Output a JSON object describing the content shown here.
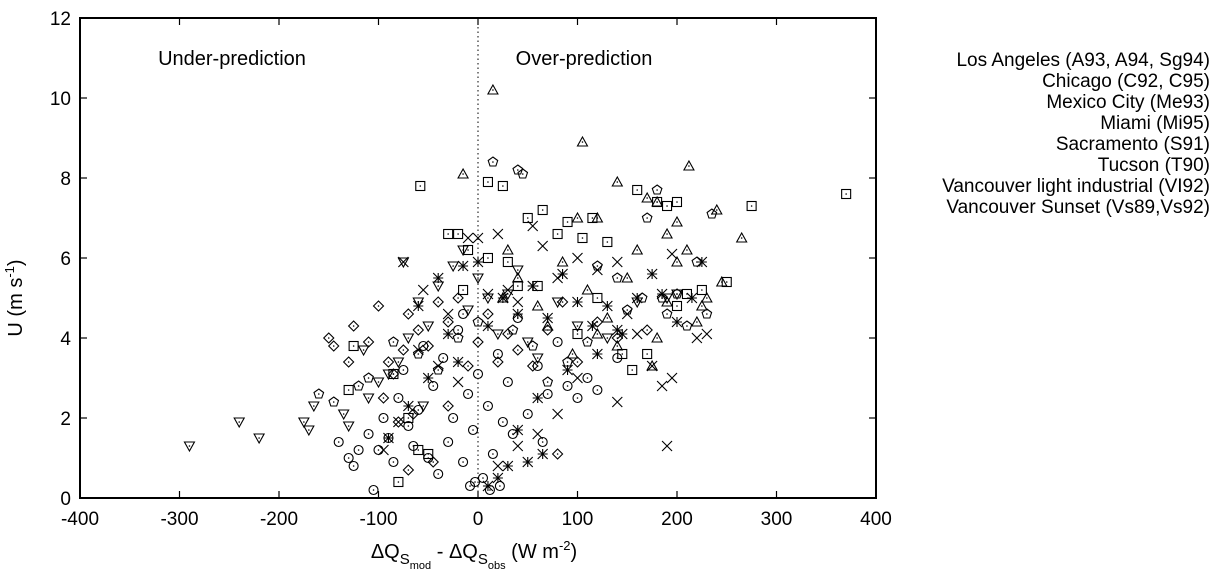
{
  "chart_data": {
    "type": "scatter",
    "xlim": [
      -400,
      400
    ],
    "ylim": [
      0,
      12
    ],
    "xticks": [
      -400,
      -300,
      -200,
      -100,
      0,
      100,
      200,
      300,
      400
    ],
    "yticks": [
      0,
      2,
      4,
      6,
      8,
      10,
      12
    ],
    "xlabel": {
      "delta": "ΔQ",
      "s1": "S",
      "mod": "mod",
      "sep": " -  ",
      "s2": "S",
      "obs": "obs",
      "unit_pre": " (W m",
      "exp": "-2",
      "unit_post": ")"
    },
    "ylabel": {
      "pre": "U (m s",
      "exp": "-1",
      "post": ")"
    },
    "grid": false,
    "zero_line": "dotted vertical at x = 0",
    "annotations": {
      "left": "Under-prediction",
      "right": "Over-prediction"
    },
    "legend_position": "right, outside plot",
    "series": [
      {
        "name": "Los Angeles (A93, A94, Sg94)",
        "marker": "circle",
        "points": [
          [
            -105,
            0.2
          ],
          [
            -100,
            1.2
          ],
          [
            -90,
            1.5
          ],
          [
            -80,
            2.5
          ],
          [
            -75,
            3.2
          ],
          [
            -70,
            1.8
          ],
          [
            -60,
            2.2
          ],
          [
            -55,
            3.8
          ],
          [
            -50,
            1.0
          ],
          [
            -45,
            2.8
          ],
          [
            -40,
            0.6
          ],
          [
            -35,
            3.5
          ],
          [
            -30,
            1.4
          ],
          [
            -25,
            2.0
          ],
          [
            -20,
            4.2
          ],
          [
            -15,
            0.9
          ],
          [
            -10,
            2.6
          ],
          [
            -5,
            1.7
          ],
          [
            0,
            3.1
          ],
          [
            5,
            0.5
          ],
          [
            10,
            2.3
          ],
          [
            15,
            1.1
          ],
          [
            20,
            3.6
          ],
          [
            25,
            1.9
          ],
          [
            30,
            2.9
          ],
          [
            40,
            4.5
          ],
          [
            50,
            2.1
          ],
          [
            60,
            3.3
          ],
          [
            70,
            2.6
          ],
          [
            80,
            3.9
          ],
          [
            90,
            2.8
          ],
          [
            100,
            2.5
          ],
          [
            110,
            3.0
          ],
          [
            120,
            2.7
          ],
          [
            140,
            3.5
          ],
          [
            -120,
            1.2
          ],
          [
            -130,
            1.0
          ],
          [
            -140,
            1.4
          ],
          [
            -110,
            1.6
          ],
          [
            -85,
            0.9
          ],
          [
            -65,
            1.3
          ],
          [
            -95,
            2.0
          ],
          [
            -15,
            4.6
          ],
          [
            -8,
            0.3
          ],
          [
            12,
            0.2
          ],
          [
            22,
            0.3
          ],
          [
            -3,
            0.4
          ],
          [
            35,
            1.6
          ],
          [
            65,
            1.4
          ],
          [
            -125,
            0.8
          ]
        ]
      },
      {
        "name": "Chicago (C92, C95)",
        "marker": "triangle-up",
        "points": [
          [
            15,
            10.2
          ],
          [
            105,
            8.9
          ],
          [
            212,
            8.3
          ],
          [
            -15,
            8.1
          ],
          [
            140,
            7.9
          ],
          [
            170,
            7.5
          ],
          [
            180,
            7.4
          ],
          [
            120,
            7.0
          ],
          [
            240,
            7.2
          ],
          [
            265,
            6.5
          ],
          [
            200,
            6.9
          ],
          [
            210,
            6.2
          ],
          [
            190,
            6.6
          ],
          [
            230,
            5.0
          ],
          [
            100,
            7.0
          ],
          [
            160,
            6.2
          ],
          [
            150,
            5.5
          ],
          [
            220,
            4.4
          ],
          [
            180,
            4.0
          ],
          [
            175,
            3.3
          ],
          [
            140,
            3.8
          ],
          [
            130,
            4.5
          ],
          [
            110,
            5.2
          ],
          [
            85,
            5.9
          ],
          [
            60,
            4.8
          ],
          [
            40,
            5.5
          ],
          [
            30,
            6.2
          ],
          [
            25,
            5.0
          ],
          [
            200,
            5.9
          ],
          [
            245,
            5.4
          ],
          [
            190,
            4.9
          ],
          [
            120,
            4.1
          ],
          [
            95,
            3.6
          ],
          [
            70,
            4.3
          ],
          [
            225,
            4.8
          ]
        ]
      },
      {
        "name": "Mexico City (Me93)",
        "marker": "triangle-down",
        "points": [
          [
            -290,
            1.3
          ],
          [
            -240,
            1.9
          ],
          [
            -220,
            1.5
          ],
          [
            -175,
            1.9
          ],
          [
            -170,
            1.7
          ],
          [
            -135,
            2.1
          ],
          [
            -130,
            1.8
          ],
          [
            -110,
            2.5
          ],
          [
            -100,
            2.9
          ],
          [
            -80,
            3.4
          ],
          [
            -75,
            5.9
          ],
          [
            -70,
            4.0
          ],
          [
            -60,
            4.9
          ],
          [
            -50,
            4.3
          ],
          [
            -40,
            5.3
          ],
          [
            -25,
            5.8
          ],
          [
            -15,
            6.2
          ],
          [
            -10,
            4.7
          ],
          [
            0,
            5.5
          ],
          [
            10,
            5.0
          ],
          [
            20,
            4.1
          ],
          [
            30,
            5.1
          ],
          [
            40,
            5.7
          ],
          [
            50,
            3.9
          ],
          [
            60,
            3.5
          ],
          [
            80,
            4.9
          ],
          [
            100,
            4.3
          ],
          [
            130,
            4.0
          ],
          [
            160,
            4.9
          ],
          [
            190,
            5.0
          ],
          [
            200,
            5.1
          ],
          [
            -55,
            2.3
          ],
          [
            -90,
            3.1
          ],
          [
            -165,
            2.3
          ],
          [
            -115,
            3.7
          ]
        ]
      },
      {
        "name": "Miami (Mi95)",
        "marker": "diamond",
        "points": [
          [
            -150,
            4.0
          ],
          [
            -145,
            3.8
          ],
          [
            -130,
            3.4
          ],
          [
            -125,
            4.3
          ],
          [
            -110,
            3.9
          ],
          [
            -100,
            4.8
          ],
          [
            -90,
            3.4
          ],
          [
            -85,
            3.1
          ],
          [
            -75,
            3.7
          ],
          [
            -70,
            4.6
          ],
          [
            -60,
            4.2
          ],
          [
            -50,
            3.8
          ],
          [
            -40,
            4.9
          ],
          [
            -30,
            4.4
          ],
          [
            -20,
            5.0
          ],
          [
            -10,
            3.3
          ],
          [
            0,
            3.9
          ],
          [
            10,
            4.6
          ],
          [
            20,
            3.4
          ],
          [
            30,
            4.1
          ],
          [
            40,
            3.7
          ],
          [
            55,
            3.3
          ],
          [
            70,
            4.2
          ],
          [
            85,
            4.9
          ],
          [
            100,
            3.4
          ],
          [
            120,
            4.4
          ],
          [
            140,
            4.0
          ],
          [
            170,
            4.2
          ],
          [
            -95,
            2.5
          ],
          [
            -65,
            2.1
          ],
          [
            -45,
            0.9
          ],
          [
            -80,
            1.9
          ],
          [
            -30,
            2.3
          ],
          [
            -70,
            0.7
          ],
          [
            80,
            1.1
          ]
        ]
      },
      {
        "name": "Sacramento (S91)",
        "marker": "square",
        "points": [
          [
            -58,
            7.8
          ],
          [
            -30,
            6.6
          ],
          [
            -20,
            6.6
          ],
          [
            -10,
            6.2
          ],
          [
            10,
            7.9
          ],
          [
            25,
            7.8
          ],
          [
            50,
            7.0
          ],
          [
            65,
            7.2
          ],
          [
            80,
            6.6
          ],
          [
            90,
            6.9
          ],
          [
            105,
            6.5
          ],
          [
            115,
            7.0
          ],
          [
            130,
            6.4
          ],
          [
            160,
            7.7
          ],
          [
            180,
            7.4
          ],
          [
            190,
            7.3
          ],
          [
            200,
            7.4
          ],
          [
            225,
            5.2
          ],
          [
            250,
            5.4
          ],
          [
            275,
            7.3
          ],
          [
            370,
            7.6
          ],
          [
            155,
            3.2
          ],
          [
            170,
            3.6
          ],
          [
            200,
            4.8
          ],
          [
            145,
            3.6
          ],
          [
            100,
            4.1
          ],
          [
            60,
            5.3
          ],
          [
            30,
            5.9
          ],
          [
            -15,
            5.2
          ],
          [
            -125,
            3.8
          ],
          [
            -85,
            3.1
          ],
          [
            -70,
            2.0
          ],
          [
            -80,
            0.4
          ],
          [
            -60,
            1.2
          ],
          [
            -50,
            1.1
          ],
          [
            -130,
            2.7
          ],
          [
            10,
            6.0
          ],
          [
            40,
            5.3
          ],
          [
            120,
            5.0
          ],
          [
            210,
            5.1
          ]
        ]
      },
      {
        "name": "Tucson (T90)",
        "marker": "pentagon",
        "points": [
          [
            -160,
            2.6
          ],
          [
            -145,
            2.4
          ],
          [
            -120,
            2.8
          ],
          [
            -110,
            3.0
          ],
          [
            -85,
            3.9
          ],
          [
            -60,
            3.6
          ],
          [
            -40,
            3.2
          ],
          [
            -20,
            4.0
          ],
          [
            0,
            4.4
          ],
          [
            15,
            8.4
          ],
          [
            40,
            8.2
          ],
          [
            45,
            8.1
          ],
          [
            120,
            5.8
          ],
          [
            140,
            5.5
          ],
          [
            150,
            4.7
          ],
          [
            165,
            5.0
          ],
          [
            170,
            7.0
          ],
          [
            180,
            7.7
          ],
          [
            185,
            5.0
          ],
          [
            190,
            4.6
          ],
          [
            200,
            5.1
          ],
          [
            210,
            4.3
          ],
          [
            220,
            5.9
          ],
          [
            230,
            4.6
          ],
          [
            235,
            7.1
          ],
          [
            110,
            3.9
          ],
          [
            90,
            3.4
          ],
          [
            70,
            2.9
          ],
          [
            55,
            3.8
          ],
          [
            35,
            4.2
          ]
        ]
      },
      {
        "name": "Vancouver light industrial (VI92)",
        "marker": "x",
        "points": [
          [
            -75,
            5.9
          ],
          [
            -55,
            5.2
          ],
          [
            -30,
            4.6
          ],
          [
            -10,
            6.5
          ],
          [
            0,
            6.5
          ],
          [
            10,
            5.1
          ],
          [
            20,
            6.6
          ],
          [
            30,
            5.2
          ],
          [
            40,
            4.9
          ],
          [
            55,
            6.8
          ],
          [
            65,
            6.3
          ],
          [
            80,
            5.5
          ],
          [
            100,
            6.0
          ],
          [
            120,
            5.7
          ],
          [
            140,
            5.9
          ],
          [
            150,
            4.6
          ],
          [
            160,
            4.1
          ],
          [
            175,
            3.3
          ],
          [
            185,
            2.8
          ],
          [
            195,
            6.1
          ],
          [
            220,
            4.0
          ],
          [
            230,
            4.1
          ],
          [
            195,
            3.0
          ],
          [
            140,
            2.4
          ],
          [
            100,
            3.0
          ],
          [
            80,
            2.1
          ],
          [
            60,
            1.6
          ],
          [
            40,
            1.3
          ],
          [
            20,
            0.8
          ],
          [
            -20,
            2.9
          ],
          [
            -40,
            3.3
          ],
          [
            -60,
            3.7
          ],
          [
            -80,
            1.9
          ],
          [
            -95,
            1.2
          ],
          [
            190,
            1.3
          ]
        ]
      },
      {
        "name": "Vancouver Sunset (Vs89,Vs92)",
        "marker": "asterisk",
        "points": [
          [
            -60,
            4.8
          ],
          [
            -40,
            5.5
          ],
          [
            -30,
            4.1
          ],
          [
            -15,
            5.8
          ],
          [
            0,
            5.9
          ],
          [
            10,
            4.3
          ],
          [
            25,
            5.0
          ],
          [
            40,
            4.6
          ],
          [
            55,
            5.3
          ],
          [
            70,
            4.5
          ],
          [
            85,
            5.6
          ],
          [
            100,
            4.9
          ],
          [
            115,
            4.3
          ],
          [
            130,
            4.8
          ],
          [
            145,
            4.1
          ],
          [
            160,
            5.0
          ],
          [
            175,
            5.6
          ],
          [
            185,
            5.1
          ],
          [
            200,
            4.4
          ],
          [
            215,
            5.0
          ],
          [
            225,
            5.9
          ],
          [
            140,
            4.2
          ],
          [
            120,
            3.6
          ],
          [
            90,
            3.2
          ],
          [
            60,
            2.5
          ],
          [
            40,
            1.7
          ],
          [
            30,
            0.8
          ],
          [
            20,
            0.5
          ],
          [
            10,
            0.3
          ],
          [
            50,
            0.9
          ],
          [
            65,
            1.1
          ],
          [
            -20,
            3.4
          ],
          [
            -50,
            3.0
          ],
          [
            -70,
            2.3
          ],
          [
            -90,
            1.5
          ]
        ]
      }
    ]
  },
  "legend": [
    "Los Angeles (A93, A94, Sg94)",
    "Chicago (C92, C95)",
    "Mexico City (Me93)",
    "Miami (Mi95)",
    "Sacramento (S91)",
    "Tucson (T90)",
    "Vancouver light industrial (VI92)",
    "Vancouver Sunset (Vs89,Vs92)"
  ]
}
